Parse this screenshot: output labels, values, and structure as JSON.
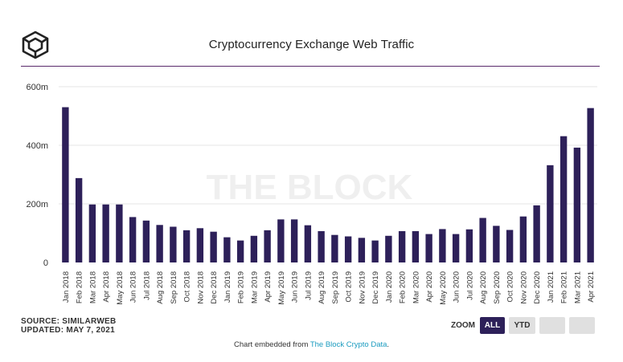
{
  "header": {
    "title": "Cryptocurrency Exchange Web Traffic"
  },
  "watermark": "THE BLOCK",
  "footer": {
    "source": "SOURCE: SIMILARWEB",
    "updated": "UPDATED: MAY 7, 2021",
    "embed_prefix": "Chart embedded from ",
    "embed_link": "The Block Crypto Data",
    "embed_suffix": "."
  },
  "zoom": {
    "label": "ZOOM",
    "all": "ALL",
    "ytd": "YTD"
  },
  "colors": {
    "bar": "#2d2059",
    "accent_line": "#5a2a6b",
    "link": "#1a9bbf"
  },
  "chart_data": {
    "type": "bar",
    "title": "Cryptocurrency Exchange Web Traffic",
    "xlabel": "",
    "ylabel": "",
    "ylim": [
      0,
      600
    ],
    "yticks": [
      0,
      200,
      400,
      600
    ],
    "ytick_labels": [
      "0",
      "200m",
      "400m",
      "600m"
    ],
    "grid": true,
    "categories": [
      "Jan 2018",
      "Feb 2018",
      "Mar 2018",
      "Apr 2018",
      "May 2018",
      "Jun 2018",
      "Jul 2018",
      "Aug 2018",
      "Sep 2018",
      "Oct 2018",
      "Nov 2018",
      "Dec 2018",
      "Jan 2019",
      "Feb 2019",
      "Mar 2019",
      "Apr 2019",
      "May 2019",
      "Jun 2019",
      "Jul 2019",
      "Aug 2019",
      "Sep 2019",
      "Oct 2019",
      "Nov 2019",
      "Dec 2019",
      "Jan 2020",
      "Feb 2020",
      "Mar 2020",
      "Apr 2020",
      "May 2020",
      "Jun 2020",
      "Jul 2020",
      "Aug 2020",
      "Sep 2020",
      "Oct 2020",
      "Nov 2020",
      "Dec 2020",
      "Jan 2021",
      "Feb 2021",
      "Mar 2021",
      "Apr 2021"
    ],
    "series": [
      {
        "name": "Web Traffic",
        "values": [
          530,
          288,
          198,
          198,
          198,
          155,
          143,
          128,
          122,
          110,
          117,
          105,
          86,
          75,
          91,
          110,
          147,
          147,
          127,
          107,
          94,
          89,
          84,
          75,
          91,
          107,
          107,
          97,
          114,
          97,
          113,
          152,
          125,
          111,
          157,
          195,
          332,
          431,
          392,
          527
        ]
      }
    ]
  }
}
